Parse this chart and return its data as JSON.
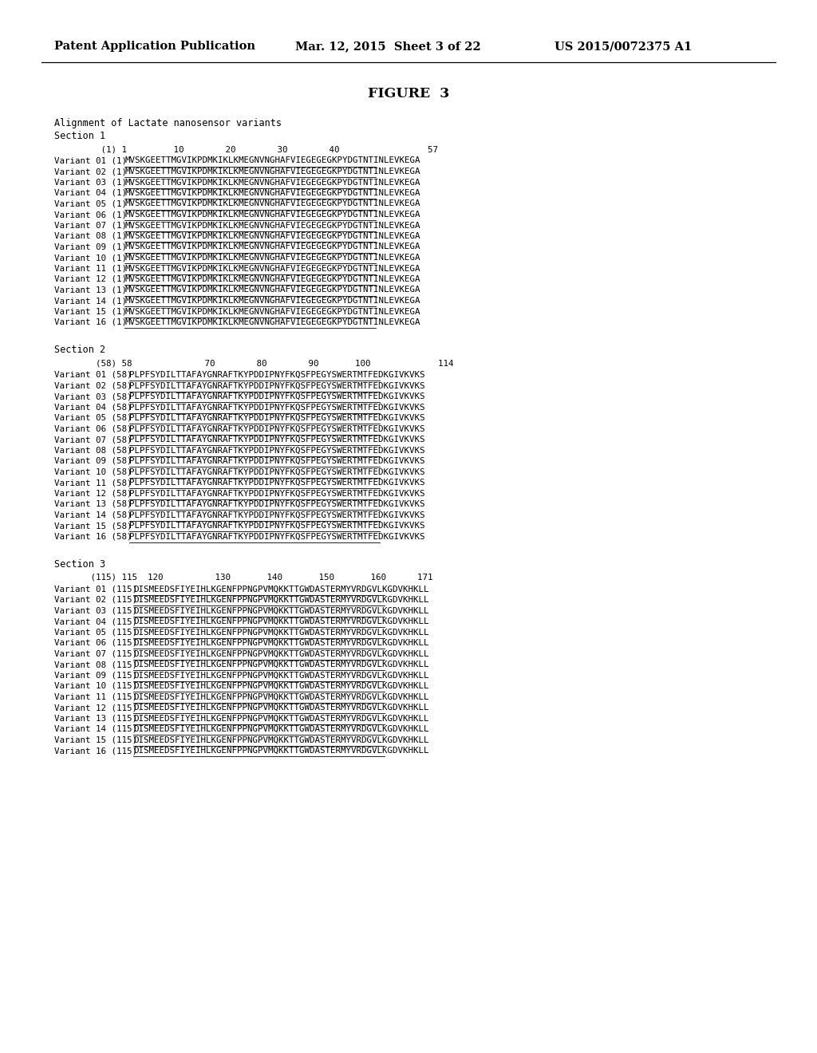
{
  "header_left": "Patent Application Publication",
  "header_mid": "Mar. 12, 2015  Sheet 3 of 22",
  "header_right": "US 2015/0072375 A1",
  "figure_title": "FIGURE  3",
  "alignment_title": "Alignment of Lactate nanosensor variants",
  "section1_name": "Section 1",
  "section2_name": "Section 2",
  "section3_name": "Section 3",
  "section1_ruler": "         (1) 1         10        20        30        40                 57",
  "section2_ruler": "        (58) 58              70        80        90       100             114",
  "section3_ruler": "       (115) 115  120          130       140       150       160      171",
  "seq1": "MVSKGEETTMGVIKPDMKIKLKMEGNVNGHAFVIEGEGEGKPYDGTNTINLEVKEGA",
  "seq2": "PLPFSYDILTTAFAYGNRAFTKYPDDIPNYFKQSFPEGYSWERTMTFEDKGIVKVKS",
  "seq3": "DISMEEDSFIYEIHLKGENFPPNGPVMQKKTTGWDASTERMYVRDGVLKGDVKHKLL",
  "variants_s1": [
    "Variant 01 (1)  MVSKGEETTMGVIKPDMKIKLKMEGNVNGHAFVIEGEGEGKPYDGTNTINLEVKEGA",
    "Variant 02 (1)  MVSKGEETTMGVIKPDMKIKLKMEGNVNGHAFVIEGEGEGKPYDGTNTINLEVKEGA",
    "Variant 03 (1)  MVSKGEETTMGVIKPDMKIKLKMEGNVNGHAFVIEGEGEGKPYDGTNTINLEVKEGA",
    "Variant 04 (1)  MVSKGEETTMGVIKPDMKIKLKMEGNVNGHAFVIEGEGEGKPYDGTNTINLEVKEGA",
    "Variant 05 (1)  MVSKGEETTMGVIKPDMKIKLKMEGNVNGHAFVIEGEGEGKPYDGTNTINLEVKEGA",
    "Variant 06 (1)  MVSKGEETTMGVIKPDMKIKLKMEGNVNGHAFVIEGEGEGKPYDGTNTINLEVKEGA",
    "Variant 07 (1)  MVSKGEETTMGVIKPDMKIKLKMEGNVNGHAFVIEGEGEGKPYDGTNTINLEVKEGA",
    "Variant 08 (1)  MVSKGEETTMGVIKPDMKIKLKMEGNVNGHAFVIEGEGEGKPYDGTNTINLEVKEGA",
    "Variant 09 (1)  MVSKGEETTMGVIKPDMKIKLKMEGNVNGHAFVIEGEGEGKPYDGTNTINLEVKEGA",
    "Variant 10 (1)  MVSKGEETTMGVIKPDMKIKLKMEGNVNGHAFVIEGEGEGKPYDGTNTINLEVKEGA",
    "Variant 11 (1)  MVSKGEETTMGVIKPDMKIKLKMEGNVNGHAFVIEGEGEGKPYDGTNTINLEVKEGA",
    "Variant 12 (1)  MVSKGEETTMGVIKPDMKIKLKMEGNVNGHAFVIEGEGEGKPYDGTNTINLEVKEGA",
    "Variant 13 (1)  MVSKGEETTMGVIKPDMKIKLKMEGNVNGHAFVIEGEGEGKPYDGTNTINLEVKEGA",
    "Variant 14 (1)  MVSKGEETTMGVIKPDMKIKLKMEGNVNGHAFVIEGEGEGKPYDGTNTINLEVKEGA",
    "Variant 15 (1)  MVSKGEETTMGVIKPDMKIKLKMEGNVNGHAFVIEGEGEGKPYDGTNTINLEVKEGA",
    "Variant 16 (1)  MVSKGEETTMGVIKPDMKIKLKMEGNVNGHAFVIEGEGEGKPYDGTNTINLEVKEGA"
  ],
  "variants_s2": [
    "Variant 01 (58)  PLPFSYDILTTAFAYGNRAFTKYPDDIPNYFKQSFPEGYSWERTMTFEDKGIVKVKS",
    "Variant 02 (58)  PLPFSYDILTTAFAYGNRAFTKYPDDIPNYFKQSFPEGYSWERTMTFEDKGIVKVKS",
    "Variant 03 (58)  PLPFSYDILTTAFAYGNRAFTKYPDDIPNYFKQSFPEGYSWERTMTFEDKGIVKVKS",
    "Variant 04 (58)  PLPFSYDILTTAFAYGNRAFTKYPDDIPNYFKQSFPEGYSWERTMTFEDKGIVKVKS",
    "Variant 05 (58)  PLPFSYDILTTAFAYGNRAFTKYPDDIPNYFKQSFPEGYSWERTMTFEDKGIVKVKS",
    "Variant 06 (58)  PLPFSYDILTTAFAYGNRAFTKYPDDIPNYFKQSFPEGYSWERTMTFEDKGIVKVKS",
    "Variant 07 (58)  PLPFSYDILTTAFAYGNRAFTKYPDDIPNYFKQSFPEGYSWERTMTFEDKGIVKVKS",
    "Variant 08 (58)  PLPFSYDILTTAFAYGNRAFTKYPDDIPNYFKQSFPEGYSWERTMTFEDKGIVKVKS",
    "Variant 09 (58)  PLPFSYDILTTAFAYGNRAFTKYPDDIPNYFKQSFPEGYSWERTMTFEDKGIVKVKS",
    "Variant 10 (58)  PLPFSYDILTTAFAYGNRAFTKYPDDIPNYFKQSFPEGYSWERTMTFEDKGIVKVKS",
    "Variant 11 (58)  PLPFSYDILTTAFAYGNRAFTKYPDDIPNYFKQSFPEGYSWERTMTFEDKGIVKVKS",
    "Variant 12 (58)  PLPFSYDILTTAFAYGNRAFTKYPDDIPNYFKQSFPEGYSWERTMTFEDKGIVKVKS",
    "Variant 13 (58)  PLPFSYDILTTAFAYGNRAFTKYPDDIPNYFKQSFPEGYSWERTMTFEDKGIVKVKS",
    "Variant 14 (58)  PLPFSYDILTTAFAYGNRAFTKYPDDIPNYFKQSFPEGYSWERTMTFEDKGIVKVKS",
    "Variant 15 (58)  PLPFSYDILTTAFAYGNRAFTKYPDDIPNYFKQSFPEGYSWERTMTFEDKGIVKVKS",
    "Variant 16 (58)  PLPFSYDILTTAFAYGNRAFTKYPDDIPNYFKQSFPEGYSWERTMTFEDKGIVKVKS"
  ],
  "variants_s3": [
    "Variant 01 (115)  DISMEEDSFIYEIHLKGENFPPNGPVMQKKTTGWDASTERMYVRDGVLKGDVKHKLL",
    "Variant 02 (115)  DISMEEDSFIYEIHLKGENFPPNGPVMQKKTTGWDASTERMYVRDGVLKGDVKHKLL",
    "Variant 03 (115)  DISMEEDSFIYEIHLKGENFPPNGPVMQKKTTGWDASTERMYVRDGVLKGDVKHKLL",
    "Variant 04 (115)  DISMEEDSFIYEIHLKGENFPPNGPVMQKKTTGWDASTERMYVRDGVLKGDVKHKLL",
    "Variant 05 (115)  DISMEEDSFIYEIHLKGENFPPNGPVMQKKTTGWDASTERMYVRDGVLKGDVKHKLL",
    "Variant 06 (115)  DISMEEDSFIYEIHLKGENFPPNGPVMQKKTTGWDASTERMYVRDGVLKGDVKHKLL",
    "Variant 07 (115)  DISMEEDSFIYEIHLKGENFPPNGPVMQKKTTGWDASTERMYVRDGVLKGDVKHKLL",
    "Variant 08 (115)  DISMEEDSFIYEIHLKGENFPPNGPVMQKKTTGWDASTERMYVRDGVLKGDVKHKLL",
    "Variant 09 (115)  DISMEEDSFIYEIHLKGENFPPNGPVMQKKTTGWDASTERMYVRDGVLKGDVKHKLL",
    "Variant 10 (115)  DISMEEDSFIYEIHLKGENFPPNGPVMQKKTTGWDASTERMYVRDGVLKGDVKHKLL",
    "Variant 11 (115)  DISMEEDSFIYEIHLKGENFPPNGPVMQKKTTGWDASTERMYVRDGVLKGDVKHKLL",
    "Variant 12 (115)  DISMEEDSFIYEIHLKGENFPPNGPVMQKKTTGWDASTERMYVRDGVLKGDVKHKLL",
    "Variant 13 (115)  DISMEEDSFIYEIHLKGENFPPNGPVMQKKTTGWDASTERMYVRDGVLKGDVKHKLL",
    "Variant 14 (115)  DISMEEDSFIYEIHLKGENFPPNGPVMQKKTTGWDASTERMYVRDGVLKGDVKHKLL",
    "Variant 15 (115)  DISMEEDSFIYEIHLKGENFPPNGPVMQKKTTGWDASTERMYVRDGVLKGDVKHKLL",
    "Variant 16 (115)  DISMEEDSFIYEIHLKGENFPPNGPVMQKKTTGWDASTERMYVRDGVLKGDVKHKLL"
  ],
  "label_seq_split_s1": 16,
  "label_seq_split_s2": 17,
  "label_seq_split_s3": 18,
  "bg_color": "#ffffff",
  "text_color": "#000000",
  "header_fontsize": 10.5,
  "title_fontsize": 12.5,
  "mono_fontsize": 7.8,
  "section_fontsize": 8.5
}
